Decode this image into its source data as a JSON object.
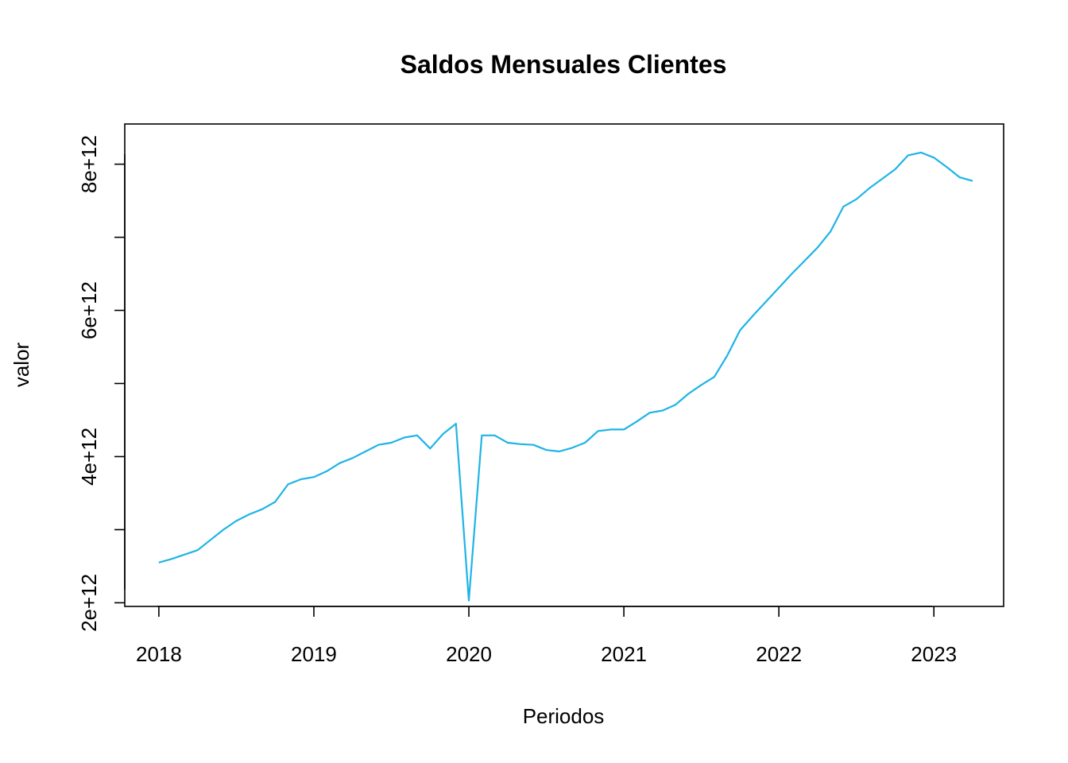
{
  "chart_data": {
    "type": "line",
    "title": "Saldos Mensuales Clientes",
    "xlabel": "Periodos",
    "ylabel": "valor",
    "xlim": [
      2017.78,
      2023.45
    ],
    "ylim": [
      1950000000000.0,
      8550000000000.0
    ],
    "x_ticks": [
      2018,
      2019,
      2020,
      2021,
      2022,
      2023
    ],
    "x_tick_labels": [
      "2018",
      "2019",
      "2020",
      "2021",
      "2022",
      "2023"
    ],
    "y_ticks": [
      2000000000000.0,
      3000000000000.0,
      4000000000000.0,
      5000000000000.0,
      6000000000000.0,
      7000000000000.0,
      8000000000000.0
    ],
    "y_tick_labels": [
      "2e+12",
      "",
      "4e+12",
      "",
      "6e+12",
      "",
      "8e+12"
    ],
    "grid": false,
    "legend": "none",
    "color": "#1EB4E6",
    "x": [
      "2018-01",
      "2018-02",
      "2018-03",
      "2018-04",
      "2018-05",
      "2018-06",
      "2018-07",
      "2018-08",
      "2018-09",
      "2018-10",
      "2018-11",
      "2018-12",
      "2019-01",
      "2019-02",
      "2019-03",
      "2019-04",
      "2019-05",
      "2019-06",
      "2019-07",
      "2019-08",
      "2019-09",
      "2019-10",
      "2019-11",
      "2019-12",
      "2020-01",
      "2020-02",
      "2020-03",
      "2020-04",
      "2020-05",
      "2020-06",
      "2020-07",
      "2020-08",
      "2020-09",
      "2020-10",
      "2020-11",
      "2020-12",
      "2021-01",
      "2021-02",
      "2021-03",
      "2021-04",
      "2021-05",
      "2021-06",
      "2021-07",
      "2021-08",
      "2021-09",
      "2021-10",
      "2021-11",
      "2021-12",
      "2022-01",
      "2022-02",
      "2022-03",
      "2022-04",
      "2022-05",
      "2022-06",
      "2022-07",
      "2022-08",
      "2022-09",
      "2022-10",
      "2022-11",
      "2022-12",
      "2023-01",
      "2023-02",
      "2023-03",
      "2023-04"
    ],
    "values": [
      2550000000000.0,
      2600000000000.0,
      2660000000000.0,
      2720000000000.0,
      2860000000000.0,
      3000000000000.0,
      3120000000000.0,
      3210000000000.0,
      3280000000000.0,
      3380000000000.0,
      3620000000000.0,
      3690000000000.0,
      3720000000000.0,
      3800000000000.0,
      3910000000000.0,
      3980000000000.0,
      4070000000000.0,
      4160000000000.0,
      4190000000000.0,
      4260000000000.0,
      4290000000000.0,
      4110000000000.0,
      4310000000000.0,
      4450000000000.0,
      2030000000000.0,
      4290000000000.0,
      4290000000000.0,
      4190000000000.0,
      4170000000000.0,
      4160000000000.0,
      4090000000000.0,
      4070000000000.0,
      4120000000000.0,
      4190000000000.0,
      4350000000000.0,
      4370000000000.0,
      4370000000000.0,
      4480000000000.0,
      4600000000000.0,
      4630000000000.0,
      4710000000000.0,
      4860000000000.0,
      4980000000000.0,
      5090000000000.0,
      5380000000000.0,
      5730000000000.0,
      5930000000000.0,
      6120000000000.0,
      6310000000000.0,
      6500000000000.0,
      6680000000000.0,
      6860000000000.0,
      7080000000000.0,
      7420000000000.0,
      7520000000000.0,
      7670000000000.0,
      7800000000000.0,
      7930000000000.0,
      8120000000000.0,
      8160000000000.0,
      8090000000000.0,
      7960000000000.0,
      7820000000000.0,
      7770000000000.0
    ]
  }
}
